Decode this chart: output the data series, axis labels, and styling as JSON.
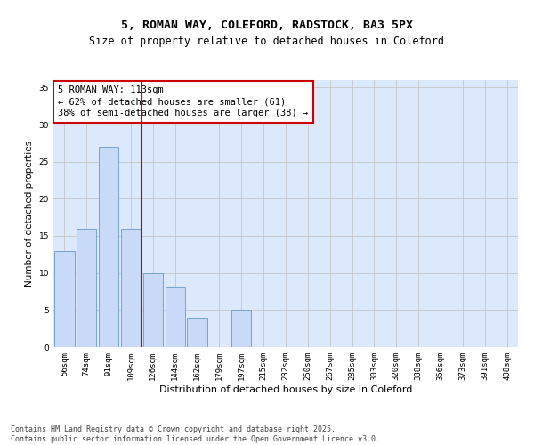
{
  "title1": "5, ROMAN WAY, COLEFORD, RADSTOCK, BA3 5PX",
  "title2": "Size of property relative to detached houses in Coleford",
  "xlabel": "Distribution of detached houses by size in Coleford",
  "ylabel": "Number of detached properties",
  "bar_labels": [
    "56sqm",
    "74sqm",
    "91sqm",
    "109sqm",
    "126sqm",
    "144sqm",
    "162sqm",
    "179sqm",
    "197sqm",
    "215sqm",
    "232sqm",
    "250sqm",
    "267sqm",
    "285sqm",
    "303sqm",
    "320sqm",
    "338sqm",
    "356sqm",
    "373sqm",
    "391sqm",
    "408sqm"
  ],
  "bar_values": [
    13,
    16,
    27,
    16,
    10,
    8,
    4,
    0,
    5,
    0,
    0,
    0,
    0,
    0,
    0,
    0,
    0,
    0,
    0,
    0,
    0
  ],
  "bar_color": "#c9daf8",
  "bar_edge_color": "#6699cc",
  "vline_index": 3,
  "vline_color": "#cc0000",
  "annotation_text": "5 ROMAN WAY: 113sqm\n← 62% of detached houses are smaller (61)\n38% of semi-detached houses are larger (38) →",
  "ylim": [
    0,
    36
  ],
  "yticks": [
    0,
    5,
    10,
    15,
    20,
    25,
    30,
    35
  ],
  "grid_color": "#c0c0c0",
  "bg_color": "#dce8fb",
  "footer_text": "Contains HM Land Registry data © Crown copyright and database right 2025.\nContains public sector information licensed under the Open Government Licence v3.0.",
  "title_fontsize": 9.5,
  "subtitle_fontsize": 8.5,
  "xlabel_fontsize": 8,
  "ylabel_fontsize": 7.5,
  "tick_fontsize": 6.5,
  "annotation_fontsize": 7.5,
  "footer_fontsize": 6
}
